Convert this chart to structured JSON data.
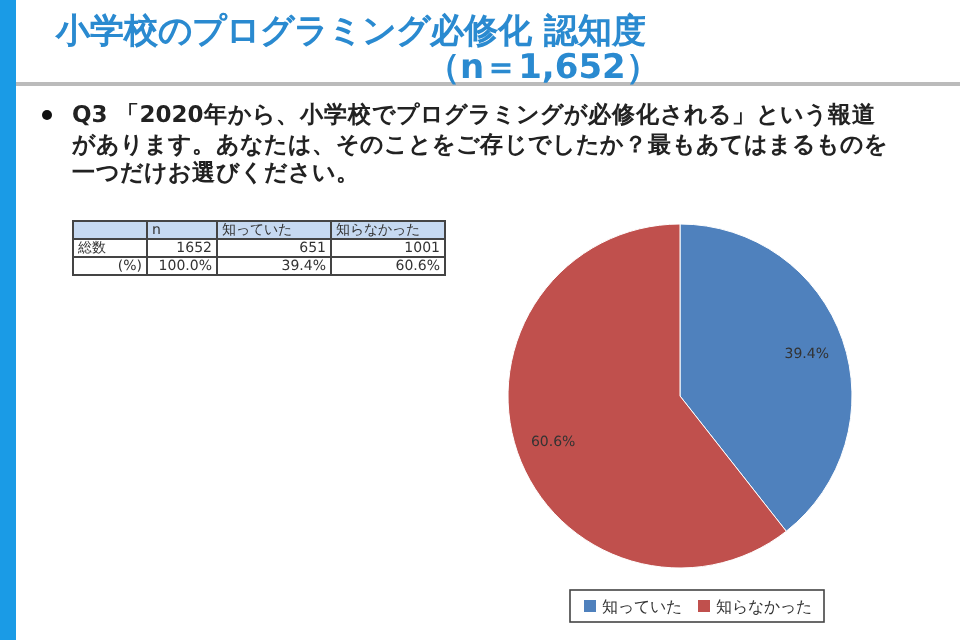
{
  "chart_data": {
    "type": "pie",
    "title": "小学校のプログラミング必修化 認知度",
    "subtitle": "（n＝1,652）",
    "categories": [
      "知っていた",
      "知らなかった"
    ],
    "values": [
      39.4,
      60.6
    ],
    "colors": [
      "#4f81bd",
      "#c0504d"
    ],
    "value_labels": [
      "39.4%",
      "60.6%"
    ],
    "legend": "bottom",
    "annotations": [
      "Q3 「2020年から、小学校でプログラミングが必修化される」という報道があります。あなたは、そのことをご存じでしたか？最もあてはまるものを一つだけお選びください。",
      "n",
      "総数",
      "1652",
      "651",
      "1001",
      "(%)",
      "100.0%",
      "39.4%",
      "60.6%"
    ]
  }
}
